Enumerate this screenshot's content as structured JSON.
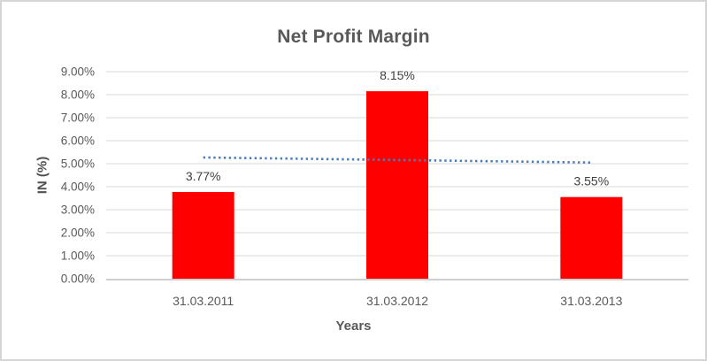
{
  "chart_data": {
    "type": "bar",
    "title": "Net Profit Margin",
    "xlabel": "Years",
    "ylabel": "IN (%)",
    "categories": [
      "31.03.2011",
      "31.03.2012",
      "31.03.2013"
    ],
    "values": [
      3.77,
      8.15,
      3.55
    ],
    "data_labels": [
      "3.77%",
      "8.15%",
      "3.55%"
    ],
    "ylim": [
      0,
      9
    ],
    "ytick_step": 1,
    "ytick_labels": [
      "0.00%",
      "1.00%",
      "2.00%",
      "3.00%",
      "4.00%",
      "5.00%",
      "6.00%",
      "7.00%",
      "8.00%",
      "9.00%"
    ],
    "grid": true,
    "legend": "none",
    "bar_color": "#ff0000",
    "trendline": {
      "type": "linear",
      "style": "dotted",
      "color": "#4a7ebb",
      "start_value": 5.27,
      "end_value": 5.05
    },
    "colors": {
      "title_text": "#595959",
      "axis_text": "#595959",
      "data_label_text": "#404040",
      "gridline": "#d9d9d9",
      "axis_line": "#bfbfbf",
      "frame_border": "#d5d5d5",
      "background": "#ffffff"
    }
  }
}
